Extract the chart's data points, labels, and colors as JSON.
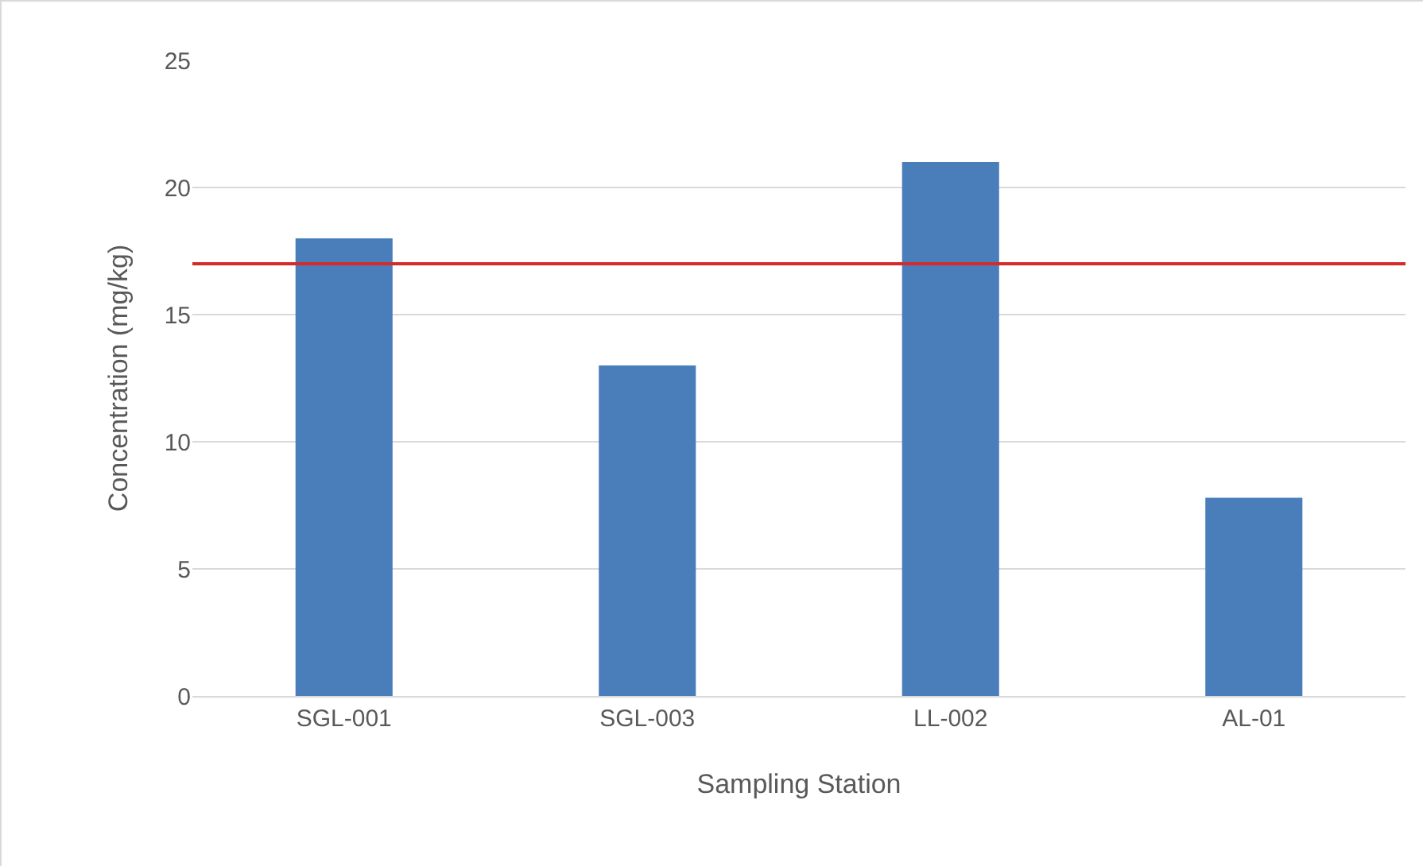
{
  "chart_data": {
    "type": "bar",
    "xlabel": "Sampling Station",
    "ylabel": "Concentration (mg/kg)",
    "categories": [
      "SGL-001",
      "SGL-003",
      "LL-002",
      "AL-01"
    ],
    "values": [
      18,
      13,
      21,
      7.8
    ],
    "color": "#4a7ebb",
    "ylim": [
      0,
      25
    ],
    "yticks": [
      0,
      5,
      10,
      15,
      20,
      25
    ],
    "grid": "y",
    "ref_lines": [
      {
        "axis": "y",
        "value": 17,
        "color": "#d42a2a"
      }
    ]
  }
}
